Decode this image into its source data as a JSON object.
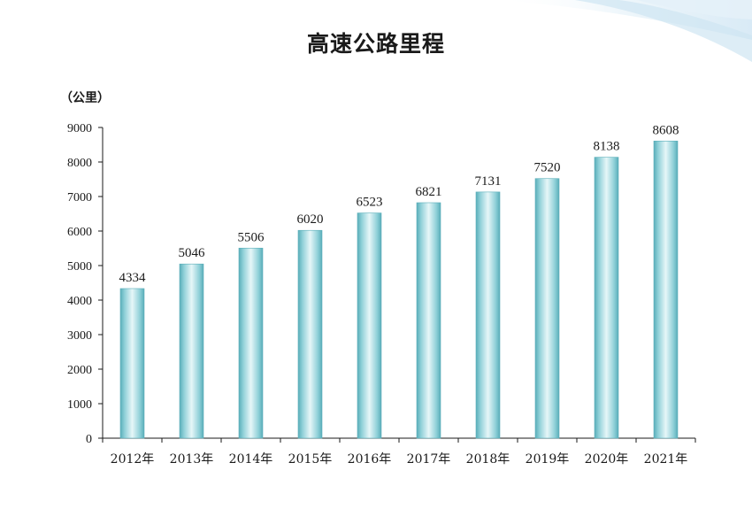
{
  "chart_data": {
    "type": "bar",
    "title": "高速公路里程",
    "ylabel": "（公里）",
    "xlabel": "",
    "categories": [
      "2012年",
      "2013年",
      "2014年",
      "2015年",
      "2016年",
      "2017年",
      "2018年",
      "2019年",
      "2020年",
      "2021年"
    ],
    "values": [
      4334,
      5046,
      5506,
      6020,
      6523,
      6821,
      7131,
      7520,
      8138,
      8608
    ],
    "ylim": [
      0,
      9000
    ],
    "yticks": [
      0,
      1000,
      2000,
      3000,
      4000,
      5000,
      6000,
      7000,
      8000,
      9000
    ],
    "grid": false,
    "legend": "none",
    "data_labels": true,
    "colors": {
      "bar_edge": "#4fa6b3",
      "bar_mid": "#e3f4f6",
      "bar_main": "#7cc7d0",
      "axis": "#1a1a1a",
      "decoration": "#cfe6f2"
    }
  }
}
